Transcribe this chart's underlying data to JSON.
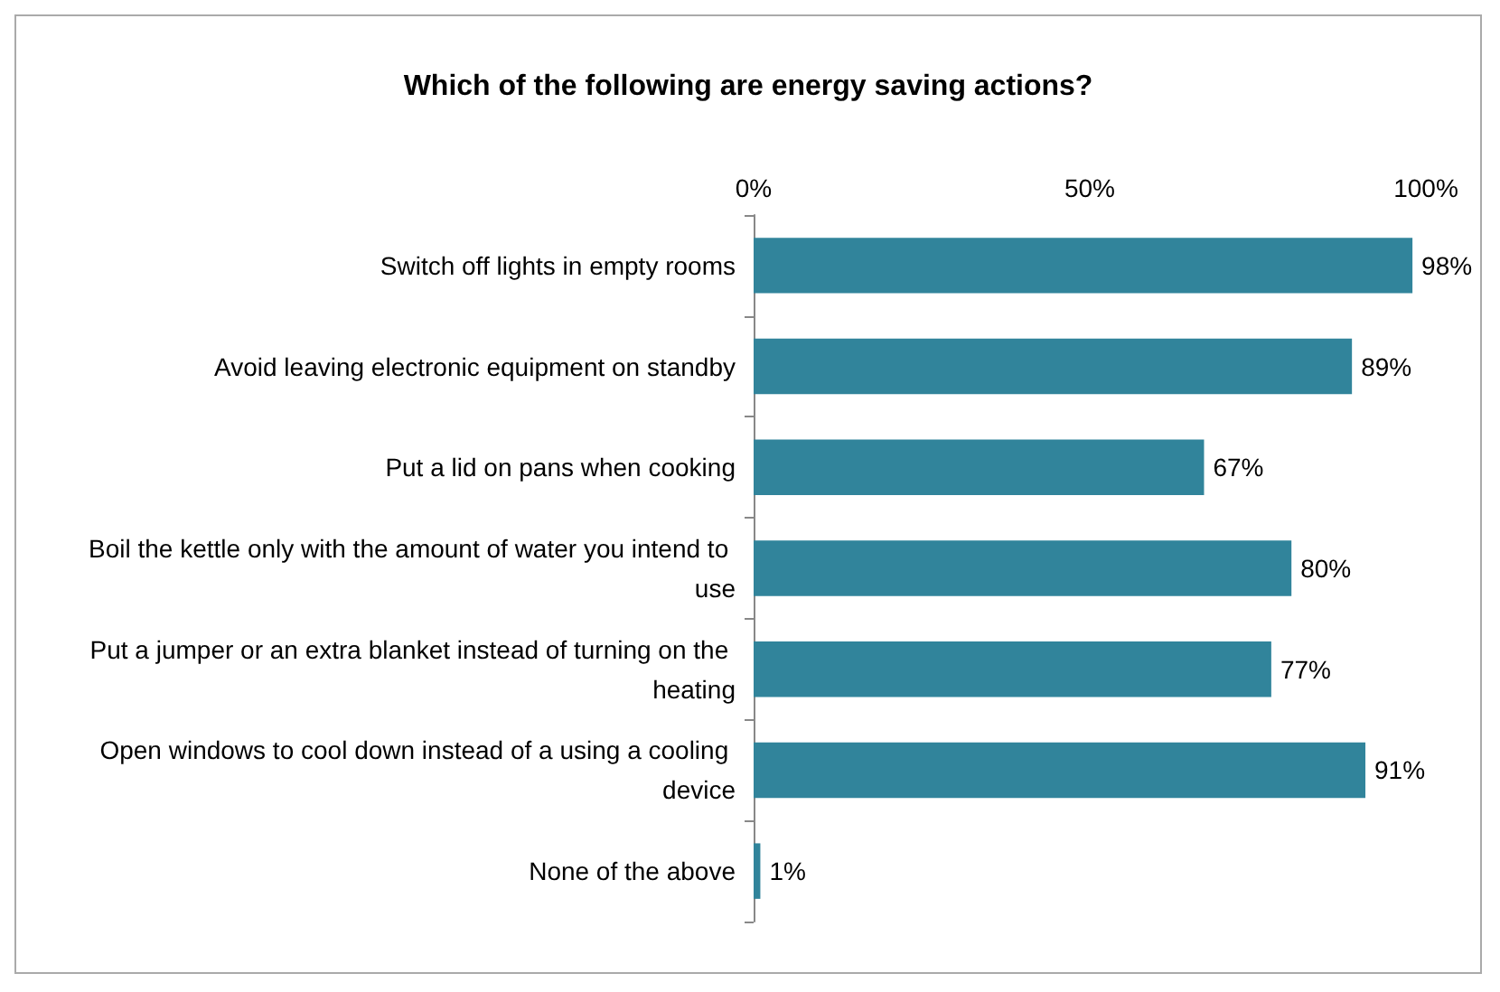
{
  "chart_data": {
    "type": "bar",
    "orientation": "horizontal",
    "title": "Which of the following are energy saving actions?",
    "categories": [
      "Switch off lights in empty rooms",
      "Avoid leaving electronic equipment on standby",
      "Put a lid on pans when cooking",
      "Boil the kettle only with the amount of water you intend to use",
      "Put a jumper or an extra blanket instead of turning on the heating",
      "Open windows to cool down instead of a using a cooling device",
      "None of the above"
    ],
    "values": [
      98,
      89,
      67,
      80,
      77,
      91,
      1
    ],
    "value_labels": [
      "98%",
      "89%",
      "67%",
      "80%",
      "77%",
      "91%",
      "1%"
    ],
    "color": "#31849b",
    "xlim": [
      0,
      100
    ],
    "xticks": [
      {
        "value": 0,
        "label": "0%"
      },
      {
        "value": 50,
        "label": "50%"
      },
      {
        "value": 100,
        "label": "100%"
      }
    ],
    "grid": false
  }
}
